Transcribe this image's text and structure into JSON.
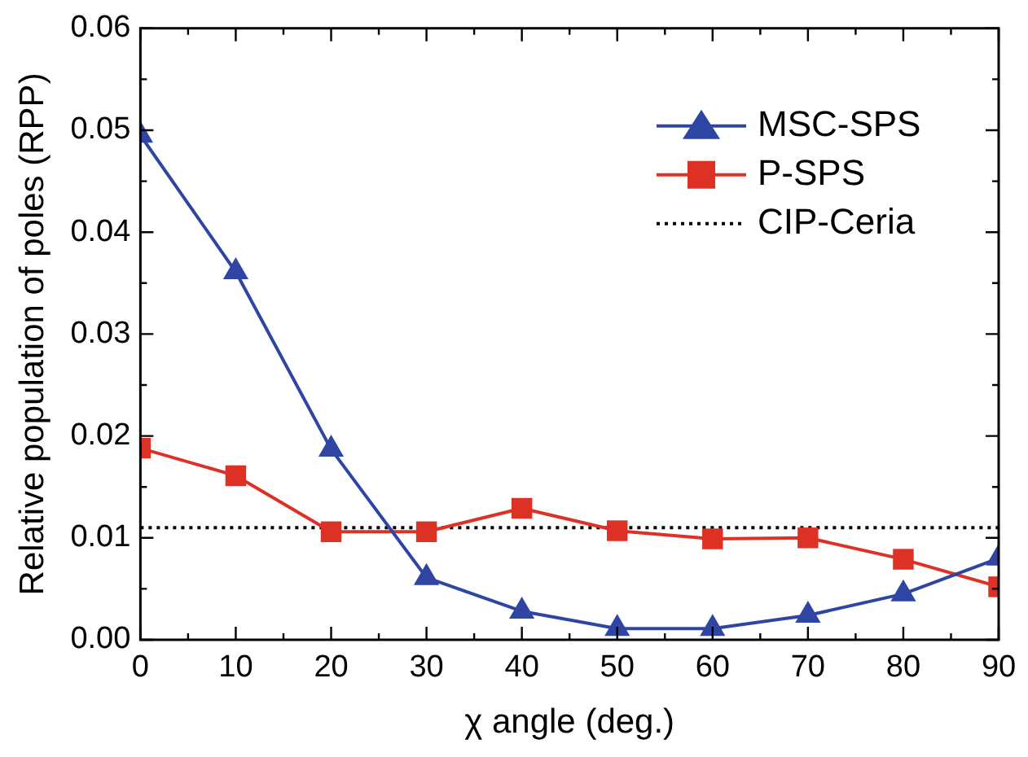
{
  "chart_data": {
    "type": "line",
    "xlabel": "χ angle (deg.)",
    "ylabel": "Relative population of poles (RPP)",
    "x": [
      0,
      10,
      20,
      30,
      40,
      50,
      60,
      70,
      80,
      90
    ],
    "series": [
      {
        "name": "MSC-SPS",
        "color": "#2e45a3",
        "marker": "triangle",
        "values": [
          0.0495,
          0.0361,
          0.0187,
          0.0061,
          0.0028,
          0.0011,
          0.0011,
          0.0024,
          0.0045,
          0.008
        ]
      },
      {
        "name": "P-SPS",
        "color": "#dd3126",
        "marker": "square",
        "values": [
          0.0188,
          0.0161,
          0.0106,
          0.0106,
          0.0129,
          0.0107,
          0.0099,
          0.01,
          0.0079,
          0.0052
        ]
      }
    ],
    "ref_lines": [
      {
        "axis": "y",
        "value": 0.011,
        "label": "CIP-Ceria",
        "color": "#000000",
        "line_style": "dotted"
      }
    ],
    "xlim": [
      0,
      90
    ],
    "xticks": [
      0,
      10,
      20,
      30,
      40,
      50,
      60,
      70,
      80,
      90
    ],
    "ylim": [
      0,
      0.06
    ],
    "yticks": [
      {
        "value": 0,
        "label": "0.00"
      },
      {
        "value": 0.01,
        "label": "0.01"
      },
      {
        "value": 0.02,
        "label": "0.02"
      },
      {
        "value": 0.03,
        "label": "0.03"
      },
      {
        "value": 0.04,
        "label": "0.04"
      },
      {
        "value": 0.05,
        "label": "0.05"
      },
      {
        "value": 0.06,
        "label": "0.06"
      }
    ],
    "grid": false,
    "legend": "top right",
    "line_style": "solid"
  }
}
